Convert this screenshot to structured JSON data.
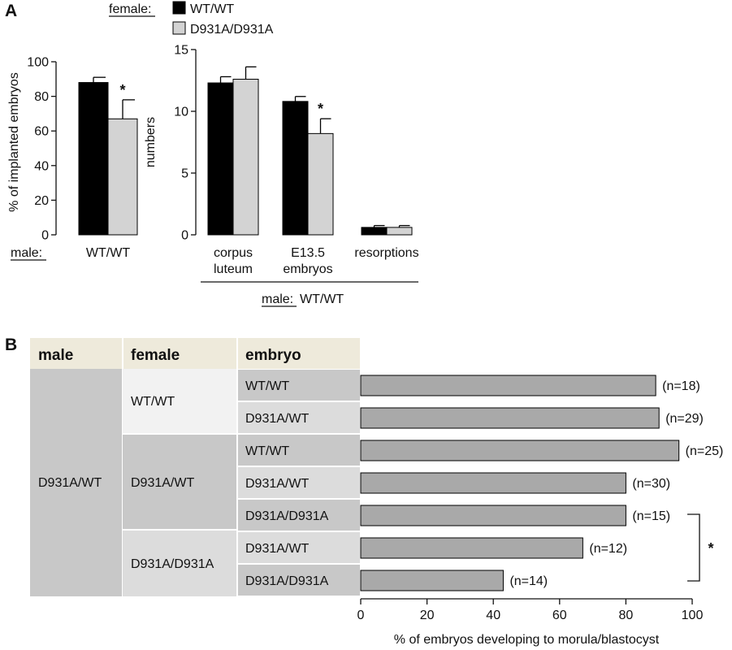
{
  "panel_a": {
    "letter": "A",
    "legend_title": "female:",
    "legend_items": [
      {
        "label": "WT/WT",
        "color": "#000000"
      },
      {
        "label": "D931A/D931A",
        "color": "#d3d3d3"
      }
    ],
    "male_label": "male:",
    "male_value": "WT/WT",
    "group_label": "WT/WT"
  },
  "panel_b": {
    "letter": "B",
    "headers": {
      "male": "male",
      "female": "female",
      "embryo": "embryo"
    },
    "male_value": "D931A/WT",
    "female_groups": [
      "WT/WT",
      "D931A/WT",
      "D931A/D931A"
    ],
    "star": "*"
  },
  "colors": {
    "wt": "#000000",
    "mutant": "#d3d3d3",
    "bar_b": "#a9a9a9",
    "header_bg": "#eeeadb",
    "cell_dark": "#c8c8c8",
    "cell_mid": "#dcdcdc",
    "cell_light": "#f2f2f2"
  },
  "chart_data": [
    {
      "type": "bar",
      "ylabel": "% of implanted embryos",
      "ylim": [
        0,
        100
      ],
      "yticks": [
        0,
        20,
        40,
        60,
        80,
        100
      ],
      "categories": [
        "WT/WT"
      ],
      "series": [
        {
          "name": "WT/WT",
          "values": [
            88
          ],
          "errors": [
            3
          ]
        },
        {
          "name": "D931A/D931A",
          "values": [
            67
          ],
          "errors": [
            11
          ]
        }
      ],
      "significance": [
        {
          "series": "D931A/D931A",
          "category": "WT/WT",
          "mark": "*"
        }
      ]
    },
    {
      "type": "bar",
      "ylabel": "numbers",
      "xlabel_prefix": "male:",
      "xlabel": "WT/WT",
      "ylim": [
        0,
        15
      ],
      "yticks": [
        0,
        5,
        10,
        15
      ],
      "categories": [
        [
          "corpus",
          "luteum"
        ],
        [
          "E13.5",
          "embryos"
        ],
        [
          "resorptions"
        ]
      ],
      "series": [
        {
          "name": "WT/WT",
          "values": [
            12.3,
            10.8,
            0.6
          ],
          "errors": [
            0.5,
            0.4,
            0.15
          ]
        },
        {
          "name": "D931A/D931A",
          "values": [
            12.6,
            8.2,
            0.6
          ],
          "errors": [
            1.0,
            1.2,
            0.15
          ]
        }
      ],
      "significance": [
        {
          "series": "D931A/D931A",
          "category": "E13.5 embryos",
          "mark": "*"
        }
      ]
    },
    {
      "type": "bar",
      "orientation": "horizontal",
      "xlabel": "% of embryos developing to morula/blastocyst",
      "xlim": [
        0,
        100
      ],
      "xticks": [
        0,
        20,
        40,
        60,
        80,
        100
      ],
      "rows": [
        {
          "male": "D931A/WT",
          "female": "WT/WT",
          "embryo": "WT/WT",
          "value": 89,
          "n_label": "(n=18)"
        },
        {
          "male": "D931A/WT",
          "female": "WT/WT",
          "embryo": "D931A/WT",
          "value": 90,
          "n_label": "(n=29)"
        },
        {
          "male": "D931A/WT",
          "female": "D931A/WT",
          "embryo": "WT/WT",
          "value": 96,
          "n_label": "(n=25)"
        },
        {
          "male": "D931A/WT",
          "female": "D931A/WT",
          "embryo": "D931A/WT",
          "value": 80,
          "n_label": "(n=30)"
        },
        {
          "male": "D931A/WT",
          "female": "D931A/WT",
          "embryo": "D931A/D931A",
          "value": 80,
          "n_label": "(n=15)"
        },
        {
          "male": "D931A/WT",
          "female": "D931A/D931A",
          "embryo": "D931A/WT",
          "value": 67,
          "n_label": "(n=12)"
        },
        {
          "male": "D931A/WT",
          "female": "D931A/D931A",
          "embryo": "D931A/D931A",
          "value": 43,
          "n_label": "(n=14)"
        }
      ],
      "significance": {
        "rows": [
          4,
          6
        ],
        "mark": "*"
      }
    }
  ]
}
